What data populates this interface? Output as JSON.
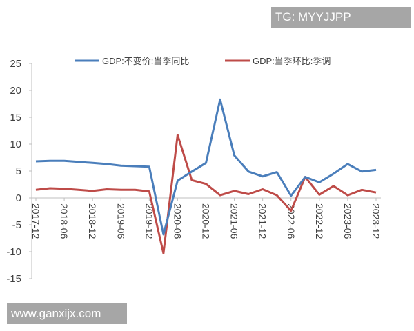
{
  "watermarks": {
    "top_right": "TG: MYYJJPP",
    "bottom_left": "www.ganxijx.com"
  },
  "chart_data": {
    "type": "line",
    "title": "",
    "xlabel": "",
    "ylabel": "",
    "ylim": [
      -15,
      25
    ],
    "yticks": [
      -15,
      -10,
      -5,
      0,
      5,
      10,
      15,
      20,
      25
    ],
    "grid": false,
    "legend_position": "top",
    "x_tick_labels": [
      "2017-12",
      "2018-06",
      "2018-12",
      "2019-06",
      "2019-12",
      "2020-06",
      "2020-12",
      "2021-06",
      "2021-12",
      "2022-06",
      "2022-12",
      "2023-06",
      "2023-12"
    ],
    "x": [
      "2017-12",
      "2018-03",
      "2018-06",
      "2018-09",
      "2018-12",
      "2019-03",
      "2019-06",
      "2019-09",
      "2019-12",
      "2020-03",
      "2020-06",
      "2020-09",
      "2020-12",
      "2021-03",
      "2021-06",
      "2021-09",
      "2021-12",
      "2022-03",
      "2022-06",
      "2022-09",
      "2022-12",
      "2023-03",
      "2023-06",
      "2023-09",
      "2023-12"
    ],
    "series": [
      {
        "name": "GDP:不变价:当季同比",
        "color": "#4a7ebb",
        "values": [
          6.8,
          6.9,
          6.9,
          6.7,
          6.5,
          6.3,
          6.0,
          5.9,
          5.8,
          -6.8,
          3.2,
          4.9,
          6.5,
          18.3,
          7.9,
          4.9,
          4.0,
          4.8,
          0.4,
          3.9,
          2.9,
          4.5,
          6.3,
          4.9,
          5.2
        ]
      },
      {
        "name": "GDP:当季环比:季调",
        "color": "#be4b48",
        "values": [
          1.5,
          1.8,
          1.7,
          1.5,
          1.3,
          1.6,
          1.5,
          1.5,
          1.2,
          -10.3,
          11.7,
          3.3,
          2.6,
          0.5,
          1.3,
          0.7,
          1.6,
          0.5,
          -2.4,
          3.9,
          0.6,
          2.2,
          0.5,
          1.5,
          1.0
        ]
      }
    ]
  }
}
